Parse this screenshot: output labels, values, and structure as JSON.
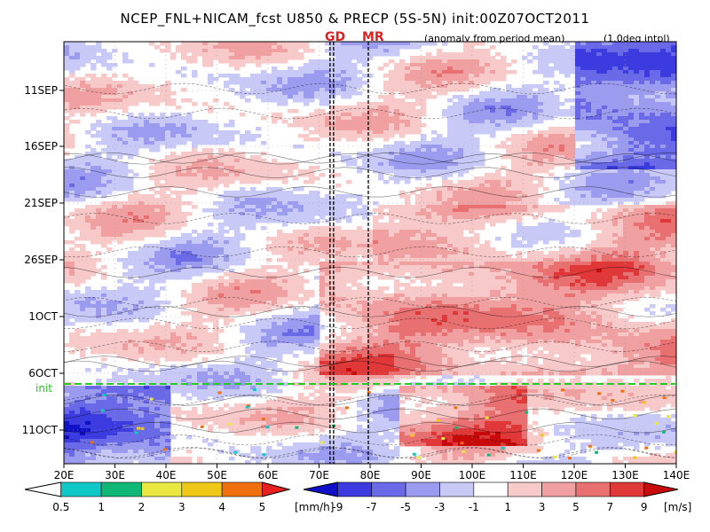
{
  "title": "NCEP_FNL+NICAM_fcst U850 & PRECP (5S-5N) init:00Z07OCT2011",
  "subtitle_anomaly": "(anomaly from period mean)",
  "subtitle_interp": "(1.0deg intpl)",
  "marker_gd": "GD",
  "marker_mr": "MR",
  "init_label": "init",
  "colors": {
    "neg_9": "#1010c8",
    "neg_7": "#3b3be0",
    "neg_5": "#6a6ae8",
    "neg_3": "#9b9bf0",
    "neg_1": "#c9c9f7",
    "neutral": "#ffffff",
    "pos_1": "#f7c9c9",
    "pos_3": "#f0a0a0",
    "pos_5": "#e87070",
    "pos_7": "#e03838",
    "pos_9": "#c80a0a",
    "init_line": "#22cc22",
    "marker": "#e02020"
  },
  "chart_data": {
    "type": "heatmap",
    "title": "NCEP_FNL+NICAM_fcst U850 & PRECP (5S-5N) init:00Z07OCT2011",
    "x_ticks": [
      "20E",
      "30E",
      "40E",
      "50E",
      "60E",
      "70E",
      "80E",
      "90E",
      "100E",
      "110E",
      "120E",
      "130E",
      "140E"
    ],
    "x_range": [
      20,
      140
    ],
    "y_ticks": [
      "11SEP",
      "16SEP",
      "21SEP",
      "26SEP",
      "1OCT",
      "6OCT",
      "11OCT"
    ],
    "y_range": [
      "06SEP2011",
      "14OCT2011"
    ],
    "init_date": "07OCT2011",
    "markers": [
      {
        "label": "GD",
        "lon": 72.5
      },
      {
        "label": "MR",
        "lon": 80
      }
    ],
    "anomaly_regions": [
      {
        "lon": [
          20,
          40
        ],
        "day_range": [
          "07OCT",
          "14OCT"
        ],
        "sign": "negative",
        "magnitude": 7
      },
      {
        "lon": [
          85,
          110
        ],
        "day_range": [
          "07OCT",
          "12OCT"
        ],
        "sign": "positive",
        "magnitude": 7
      },
      {
        "lon": [
          70,
          140
        ],
        "day_range": [
          "26SEP",
          "06OCT"
        ],
        "sign": "positive",
        "magnitude": 5
      },
      {
        "lon": [
          120,
          140
        ],
        "day_range": [
          "06SEP",
          "18SEP"
        ],
        "sign": "negative",
        "magnitude": 7
      },
      {
        "lon": [
          80,
          140
        ],
        "day_range": [
          "21SEP",
          "26SEP"
        ],
        "sign": "positive",
        "magnitude": 3
      }
    ],
    "precip_colorbar": {
      "unit": "[mm/h]",
      "levels": [
        "0.5",
        "1",
        "2",
        "3",
        "4",
        "5"
      ],
      "colors": [
        "#ffffff",
        "#10c8c8",
        "#10b878",
        "#e8e840",
        "#f0c818",
        "#f07010",
        "#e82020"
      ]
    },
    "wind_colorbar": {
      "unit": "[m/s]",
      "levels": [
        "-9",
        "-7",
        "-5",
        "-3",
        "-1",
        "1",
        "3",
        "5",
        "7",
        "9"
      ],
      "colors": [
        "#1010c8",
        "#3b3be0",
        "#6a6ae8",
        "#9b9bf0",
        "#c9c9f7",
        "#ffffff",
        "#f7c9c9",
        "#f0a0a0",
        "#e87070",
        "#e03838",
        "#c80a0a"
      ]
    }
  }
}
